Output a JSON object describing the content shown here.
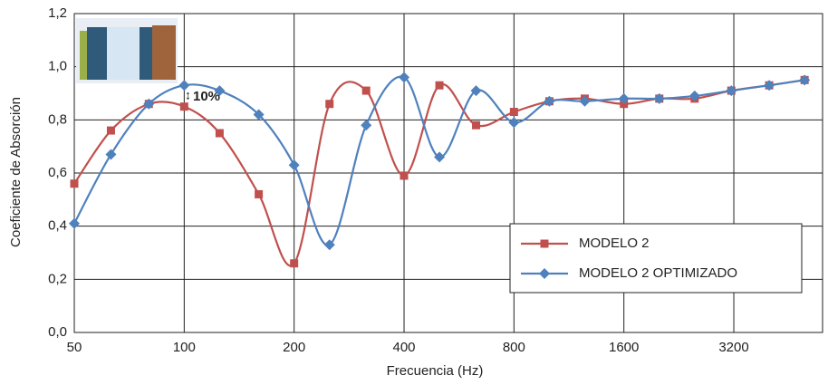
{
  "chart_data": {
    "type": "line",
    "xlabel": "Frecuencia (Hz)",
    "ylabel": "Coeficiente de Absorción",
    "annotation": "10%",
    "x": [
      50,
      63,
      80,
      100,
      125,
      160,
      200,
      250,
      315,
      400,
      500,
      630,
      800,
      1000,
      1250,
      1600,
      2000,
      2500,
      3150,
      4000,
      5000
    ],
    "series": [
      {
        "name": "MODELO 2",
        "color": "#c0504d",
        "marker": "square",
        "values": [
          0.56,
          0.76,
          0.86,
          0.85,
          0.75,
          0.52,
          0.26,
          0.86,
          0.91,
          0.59,
          0.93,
          0.78,
          0.83,
          0.87,
          0.88,
          0.86,
          0.88,
          0.88,
          0.91,
          0.93,
          0.95
        ]
      },
      {
        "name": "MODELO 2 OPTIMIZADO",
        "color": "#4f81bd",
        "marker": "diamond",
        "values": [
          0.41,
          0.67,
          0.86,
          0.93,
          0.91,
          0.82,
          0.63,
          0.33,
          0.78,
          0.96,
          0.66,
          0.91,
          0.79,
          0.87,
          0.87,
          0.88,
          0.88,
          0.89,
          0.91,
          0.93,
          0.95
        ]
      }
    ],
    "xscale": "log",
    "xlim": [
      50,
      5600
    ],
    "xticks": [
      50,
      100,
      200,
      400,
      800,
      1600,
      3200
    ],
    "ylim": [
      0,
      1.2
    ],
    "yticks": [
      {
        "value": 0,
        "label": "0,0"
      },
      {
        "value": 0.2,
        "label": "0,2"
      },
      {
        "value": 0.4,
        "label": "0,4"
      },
      {
        "value": 0.6,
        "label": "0,6"
      },
      {
        "value": 0.8,
        "label": "0,8"
      },
      {
        "value": 1.0,
        "label": "1,0"
      },
      {
        "value": 1.2,
        "label": "1,2"
      }
    ],
    "grid": true,
    "legend": "lower right",
    "smooth": true
  }
}
